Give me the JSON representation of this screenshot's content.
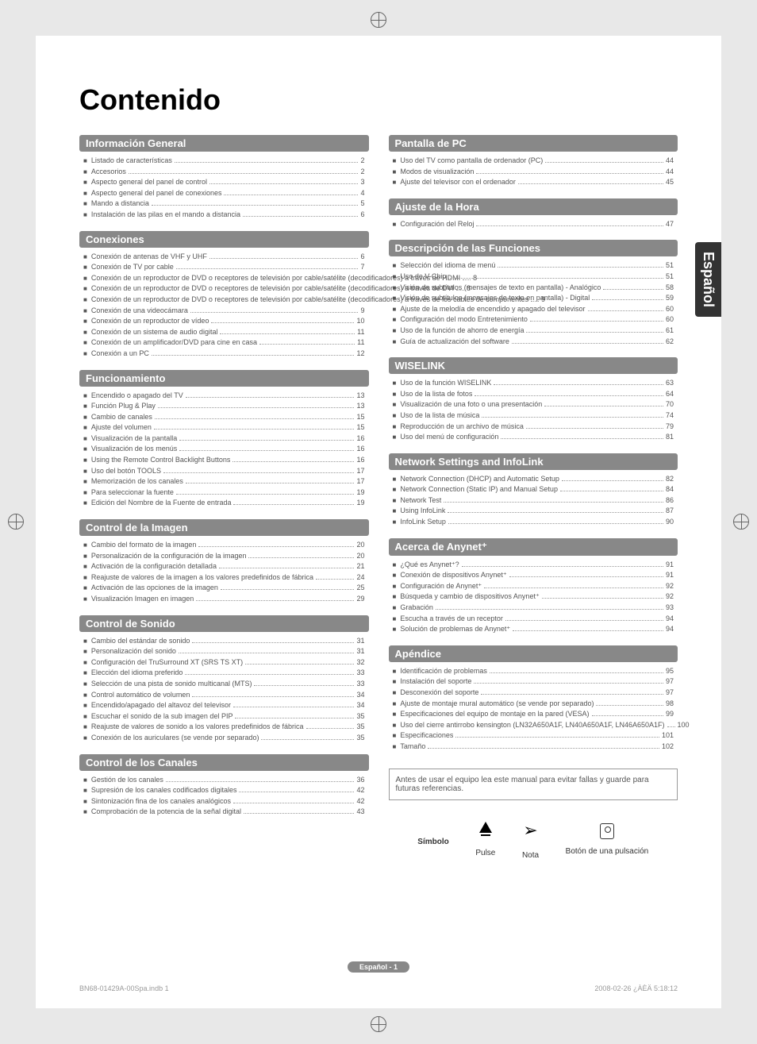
{
  "title": "Contenido",
  "side_tab": "Español",
  "sections_left": [
    {
      "header": "Información General",
      "items": [
        {
          "label": "Listado de características",
          "page": "2"
        },
        {
          "label": "Accesorios",
          "page": "2"
        },
        {
          "label": "Aspecto general del panel de control",
          "page": "3"
        },
        {
          "label": "Aspecto general del panel de conexiones",
          "page": "4"
        },
        {
          "label": "Mando a distancia",
          "page": "5"
        },
        {
          "label": "Instalación de las pilas en el mando a distancia",
          "page": "6"
        }
      ]
    },
    {
      "header": "Conexiones",
      "items": [
        {
          "label": "Conexión de antenas de VHF y UHF",
          "page": "6"
        },
        {
          "label": "Conexión de TV por cable",
          "page": "7"
        },
        {
          "label": "Conexión de un reproductor de DVD o receptores de televisión por cable/satélite (decodificadores) a través de HDMI",
          "page": "8"
        },
        {
          "label": "Conexión de un reproductor de DVD o receptores de televisión por cable/satélite (decodificadores) a través de DVI",
          "page": "8"
        },
        {
          "label": "Conexión de un reproductor de DVD o receptores de televisión por cable/satélite (decodificadores) a través de los cables de componentes",
          "page": "9"
        },
        {
          "label": "Conexión de una videocámara",
          "page": "9"
        },
        {
          "label": "Conexión de un reproductor de vídeo",
          "page": "10"
        },
        {
          "label": "Conexión de un sistema de audio digital",
          "page": "11"
        },
        {
          "label": "Conexión de un amplificador/DVD para cine en casa",
          "page": "11"
        },
        {
          "label": "Conexión a un PC",
          "page": "12"
        }
      ]
    },
    {
      "header": "Funcionamiento",
      "items": [
        {
          "label": "Encendido o apagado del TV",
          "page": "13"
        },
        {
          "label": "Función Plug & Play",
          "page": "13"
        },
        {
          "label": "Cambio de canales",
          "page": "15"
        },
        {
          "label": "Ajuste del volumen",
          "page": "15"
        },
        {
          "label": "Visualización de la pantalla",
          "page": "16"
        },
        {
          "label": "Visualización de los menús",
          "page": "16"
        },
        {
          "label": "Using the Remote Control Backlight Buttons",
          "page": "16"
        },
        {
          "label": "Uso del botón TOOLS",
          "page": "17"
        },
        {
          "label": "Memorización de los canales",
          "page": "17"
        },
        {
          "label": "Para seleccionar la fuente",
          "page": "19"
        },
        {
          "label": "Edición del Nombre de la Fuente de entrada",
          "page": "19"
        }
      ]
    },
    {
      "header": "Control de la Imagen",
      "items": [
        {
          "label": "Cambio del formato de la imagen",
          "page": "20"
        },
        {
          "label": "Personalización de la configuración de la imagen",
          "page": "20"
        },
        {
          "label": "Activación de la configuración detallada",
          "page": "21"
        },
        {
          "label": "Reajuste de valores de la imagen a los valores predefinidos de fábrica",
          "page": "24"
        },
        {
          "label": "Activación de las opciones de la imagen",
          "page": "25"
        },
        {
          "label": "Visualización Imagen en imagen",
          "page": "29"
        }
      ]
    },
    {
      "header": "Control de Sonido",
      "items": [
        {
          "label": "Cambio del estándar de sonido",
          "page": "31"
        },
        {
          "label": "Personalización del sonido",
          "page": "31"
        },
        {
          "label": "Configuración del TruSurround XT (SRS TS XT)",
          "page": "32"
        },
        {
          "label": "Elección del idioma preferido",
          "page": "33"
        },
        {
          "label": "Selección de una pista de sonido multicanal (MTS)",
          "page": "33"
        },
        {
          "label": "Control automático de volumen",
          "page": "34"
        },
        {
          "label": "Encendido/apagado del altavoz del televisor",
          "page": "34"
        },
        {
          "label": "Escuchar el sonido de la sub imagen del PIP",
          "page": "35"
        },
        {
          "label": "Reajuste de valores de sonido a los valores predefinidos de fábrica",
          "page": "35"
        },
        {
          "label": "Conexión de los auriculares (se vende por separado)",
          "page": "35"
        }
      ]
    },
    {
      "header": "Control de los Canales",
      "items": [
        {
          "label": "Gestión de los canales",
          "page": "36"
        },
        {
          "label": "Supresión de los canales codificados digitales",
          "page": "42"
        },
        {
          "label": "Sintonización fina de los canales analógicos",
          "page": "42"
        },
        {
          "label": "Comprobación de la potencia de la señal digital",
          "page": "43"
        }
      ]
    }
  ],
  "sections_right": [
    {
      "header": "Pantalla de PC",
      "items": [
        {
          "label": "Uso del TV como pantalla de ordenador (PC)",
          "page": "44"
        },
        {
          "label": "Modos de visualización",
          "page": "44"
        },
        {
          "label": "Ajuste del televisor con el ordenador",
          "page": "45"
        }
      ]
    },
    {
      "header": "Ajuste de la Hora",
      "items": [
        {
          "label": "Configuración del Reloj",
          "page": "47"
        }
      ]
    },
    {
      "header": "Descripción de las Funciones",
      "items": [
        {
          "label": "Selección del idioma de menú",
          "page": "51"
        },
        {
          "label": "Uso de V-Chip",
          "page": "51"
        },
        {
          "label": "Visión de subtítulos (mensajes de texto en pantalla) - Analógico",
          "page": "58"
        },
        {
          "label": "Visión de subtítulos (mensajes de texto en pantalla) - Digital",
          "page": "59"
        },
        {
          "label": "Ajuste de la melodía de encendido y apagado del televisor",
          "page": "60"
        },
        {
          "label": "Configuración del modo Entretenimiento",
          "page": "60"
        },
        {
          "label": "Uso de la función de ahorro de energía",
          "page": "61"
        },
        {
          "label": "Guía de actualización del software",
          "page": "62"
        }
      ]
    },
    {
      "header": "WISELINK",
      "items": [
        {
          "label": "Uso de la función WISELINK",
          "page": "63"
        },
        {
          "label": "Uso de la lista de fotos",
          "page": "64"
        },
        {
          "label": "Visualización de una foto o una presentación",
          "page": "70"
        },
        {
          "label": "Uso de la lista de música",
          "page": "74"
        },
        {
          "label": "Reproducción de un archivo de música",
          "page": "79"
        },
        {
          "label": "Uso del menú de configuración",
          "page": "81"
        }
      ]
    },
    {
      "header": "Network Settings and InfoLink",
      "items": [
        {
          "label": "Network Connection (DHCP) and Automatic Setup",
          "page": "82"
        },
        {
          "label": "Network Connection (Static IP) and Manual Setup",
          "page": "84"
        },
        {
          "label": "Network Test",
          "page": "86"
        },
        {
          "label": "Using InfoLink",
          "page": "87"
        },
        {
          "label": "InfoLink Setup",
          "page": "90"
        }
      ]
    },
    {
      "header": "Acerca de Anynet⁺",
      "items": [
        {
          "label": "¿Qué es Anynet⁺?",
          "page": "91"
        },
        {
          "label": "Conexión de dispositivos Anynet⁺",
          "page": "91"
        },
        {
          "label": "Configuración de Anynet⁺",
          "page": "92"
        },
        {
          "label": "Búsqueda y cambio de dispositivos Anynet⁺",
          "page": "92"
        },
        {
          "label": "Grabación",
          "page": "93"
        },
        {
          "label": "Escucha a través de un receptor",
          "page": "94"
        },
        {
          "label": "Solución de problemas de Anynet⁺",
          "page": "94"
        }
      ]
    },
    {
      "header": "Apéndice",
      "items": [
        {
          "label": "Identificación de problemas",
          "page": "95"
        },
        {
          "label": "Instalación del soporte",
          "page": "97"
        },
        {
          "label": "Desconexión del soporte",
          "page": "97"
        },
        {
          "label": "Ajuste de montaje mural automático (se vende por separado)",
          "page": "98"
        },
        {
          "label": "Especificaciones del equipo de montaje en la pared (VESA)",
          "page": "99"
        },
        {
          "label": "Uso del cierre antirrobo kensington (LN32A650A1F, LN40A650A1F, LN46A650A1F)",
          "page": "100"
        },
        {
          "label": "Especificaciones",
          "page": "101"
        },
        {
          "label": "Tamaño",
          "page": "102"
        }
      ]
    }
  ],
  "notice": "Antes de usar el equipo lea este manual para evitar fallas y guarde para futuras referencias.",
  "symbols": {
    "heading": "Símbolo",
    "pulse": "Pulse",
    "nota": "Nota",
    "boton": "Botón de una pulsación"
  },
  "footer_page": "Español - 1",
  "footer_left": "BN68-01429A-00Spa.indb   1",
  "footer_right": "2008-02-26   ¿ÀÈÄ 5:18:12"
}
